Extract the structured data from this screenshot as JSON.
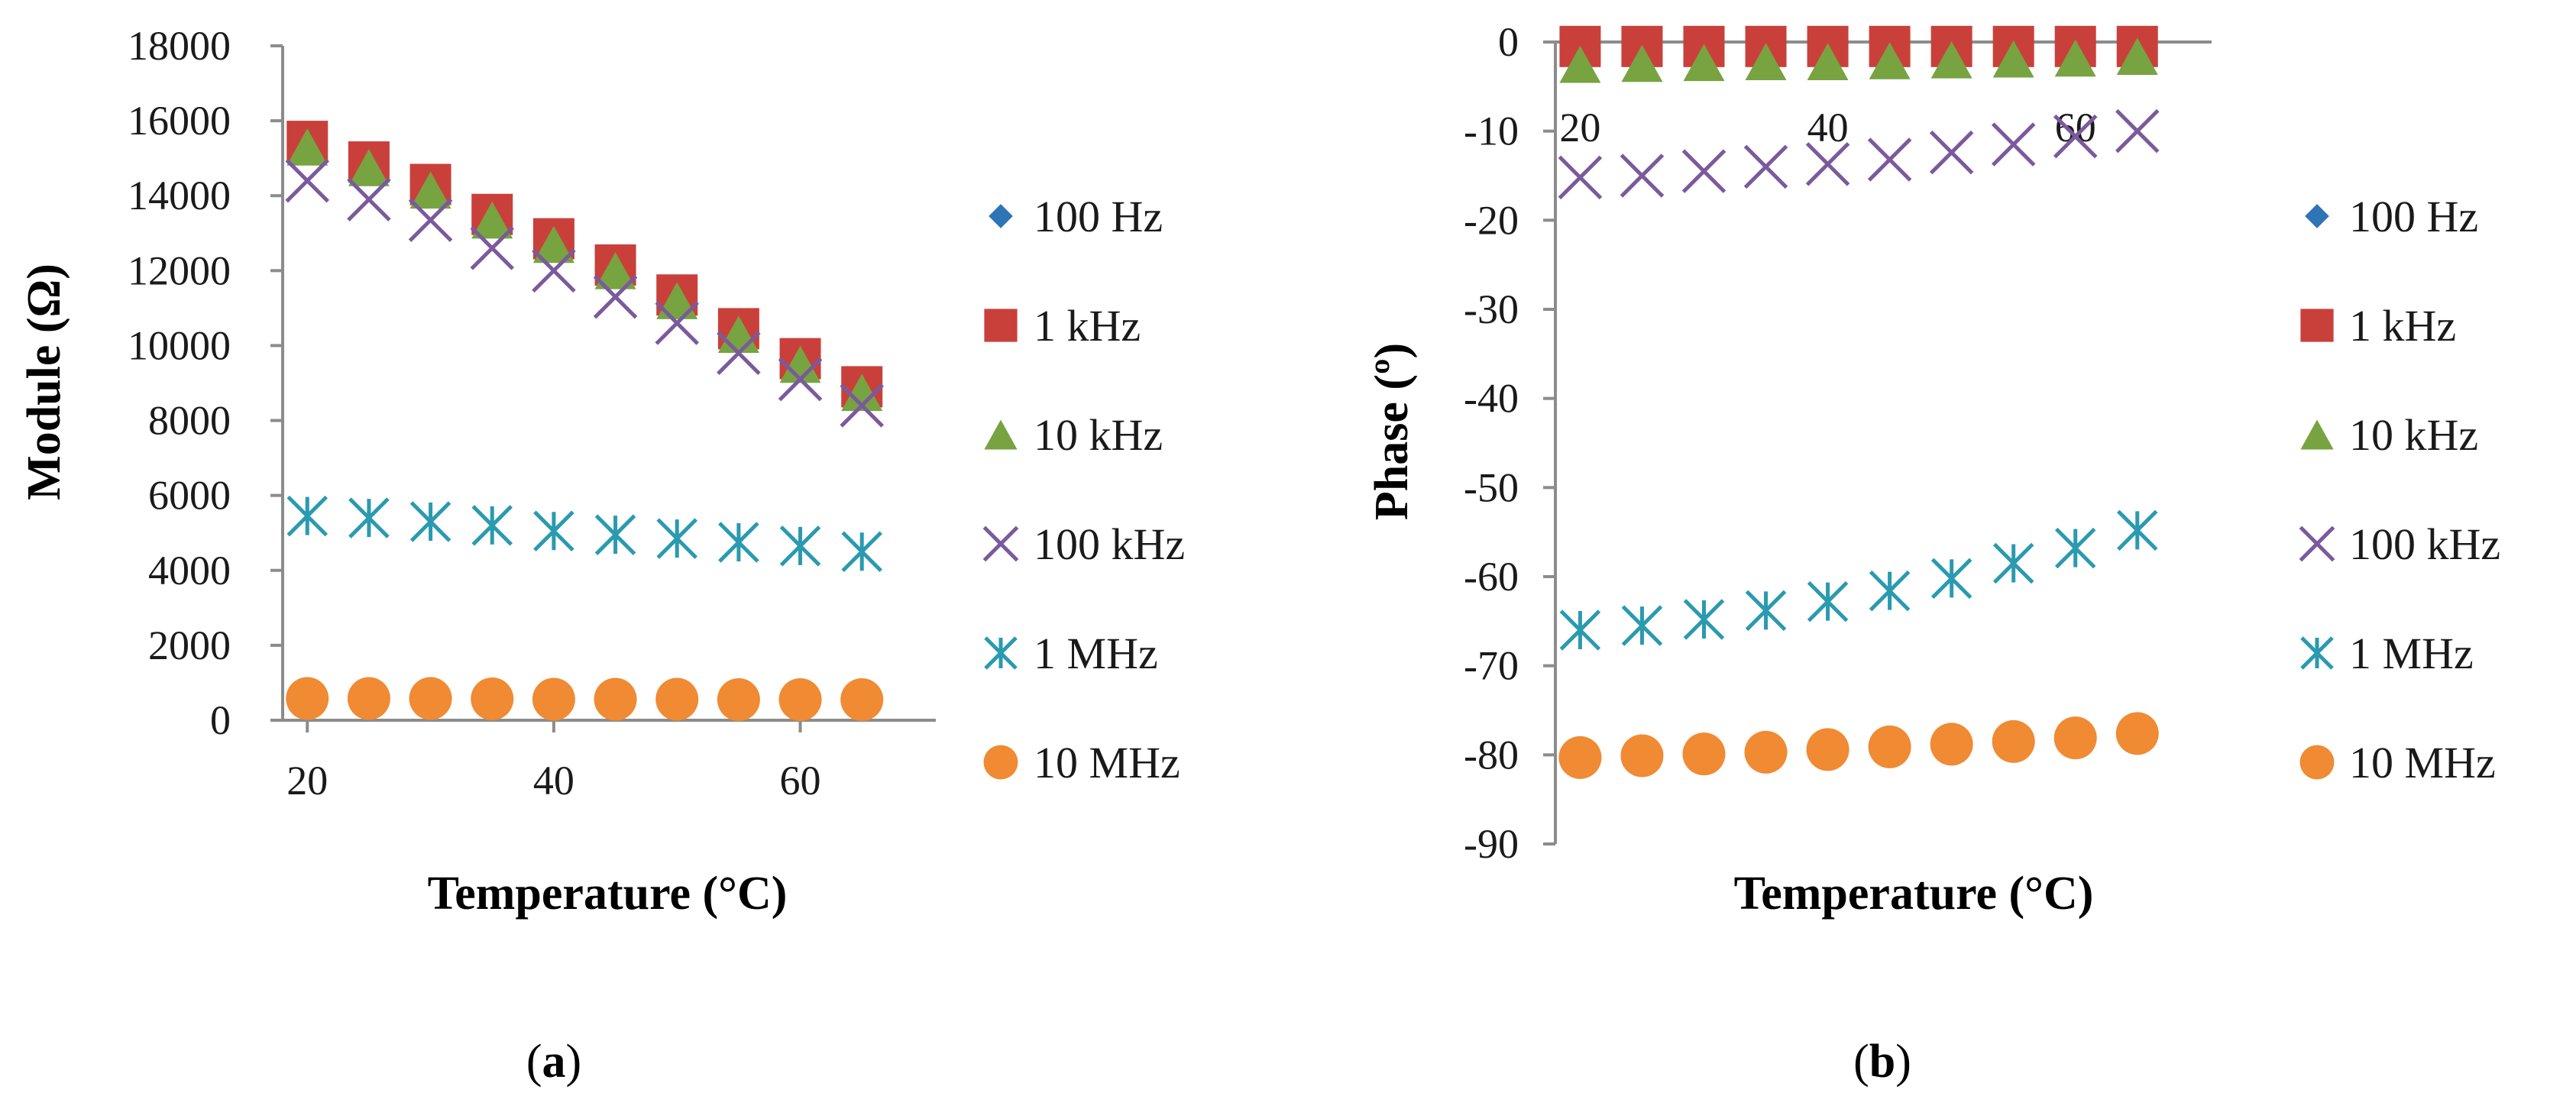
{
  "series_style": [
    {
      "name": "100 Hz",
      "marker": "diamond",
      "color": "#2e75b6"
    },
    {
      "name": "1 kHz",
      "marker": "square",
      "color": "#c9403b"
    },
    {
      "name": "10 kHz",
      "marker": "triangle",
      "color": "#77a341"
    },
    {
      "name": "100 kHz",
      "marker": "x",
      "color": "#7a5a9c"
    },
    {
      "name": "1 MHz",
      "marker": "asterisk",
      "color": "#2a9ab0"
    },
    {
      "name": "10 MHz",
      "marker": "circle",
      "color": "#f08a33"
    }
  ],
  "panels": [
    {
      "label_open": "(",
      "label_letter": "a",
      "label_close": ")"
    },
    {
      "label_open": "(",
      "label_letter": "b",
      "label_close": ")"
    }
  ],
  "chart_data": [
    {
      "type": "scatter",
      "title": "",
      "xlabel": "Temperature (°C)",
      "ylabel": "Module (Ω)",
      "xlim": [
        18,
        71
      ],
      "ylim": [
        0,
        18000
      ],
      "xticks": [
        20,
        40,
        60
      ],
      "yticks": [
        0,
        2000,
        4000,
        6000,
        8000,
        10000,
        12000,
        14000,
        16000,
        18000
      ],
      "x": [
        20,
        25,
        30,
        35,
        40,
        45,
        50,
        55,
        60,
        65
      ],
      "legend_labels": [
        "100 Hz",
        "1 kHz",
        "10 kHz",
        "100 kHz",
        "1 MHz",
        "10 MHz"
      ],
      "series": [
        {
          "name": "100 Hz",
          "values": [
            15500,
            14950,
            14350,
            13550,
            12900,
            12200,
            11400,
            10500,
            9700,
            8950
          ]
        },
        {
          "name": "1 kHz",
          "values": [
            15450,
            14900,
            14300,
            13500,
            12850,
            12150,
            11350,
            10450,
            9650,
            8900
          ]
        },
        {
          "name": "10 kHz",
          "values": [
            15300,
            14750,
            14150,
            13350,
            12700,
            12000,
            11200,
            10300,
            9500,
            8750
          ]
        },
        {
          "name": "100 kHz",
          "values": [
            14400,
            13900,
            13350,
            12600,
            12000,
            11300,
            10600,
            9800,
            9100,
            8400
          ]
        },
        {
          "name": "1 MHz",
          "values": [
            5450,
            5400,
            5300,
            5200,
            5050,
            4950,
            4850,
            4750,
            4650,
            4500
          ]
        },
        {
          "name": "10 MHz",
          "values": [
            580,
            580,
            580,
            570,
            560,
            560,
            560,
            550,
            550,
            550
          ]
        }
      ]
    },
    {
      "type": "scatter",
      "title": "",
      "xlabel": "Temperature (°C)",
      "ylabel": "Phase (º)",
      "xlim": [
        18,
        71
      ],
      "ylim": [
        -90,
        0
      ],
      "xticks": [
        20,
        40,
        60
      ],
      "yticks": [
        0,
        -10,
        -20,
        -30,
        -40,
        -50,
        -60,
        -70,
        -80,
        -90
      ],
      "x": [
        20,
        25,
        30,
        35,
        40,
        45,
        50,
        55,
        60,
        65
      ],
      "legend_labels": [
        "100 Hz",
        "1 kHz",
        "10 kHz",
        "100 kHz",
        "1 MHz",
        "10 MHz"
      ],
      "series": [
        {
          "name": "100 Hz",
          "values": [
            -0.2,
            -0.2,
            -0.2,
            -0.2,
            -0.2,
            -0.2,
            -0.2,
            -0.2,
            -0.2,
            -0.2
          ]
        },
        {
          "name": "1 kHz",
          "values": [
            -0.5,
            -0.5,
            -0.5,
            -0.5,
            -0.5,
            -0.5,
            -0.5,
            -0.5,
            -0.5,
            -0.5
          ]
        },
        {
          "name": "10 kHz",
          "values": [
            -2.5,
            -2.4,
            -2.3,
            -2.2,
            -2.2,
            -2.1,
            -2.0,
            -1.9,
            -1.8,
            -1.6
          ]
        },
        {
          "name": "100 kHz",
          "values": [
            -15.2,
            -15.0,
            -14.5,
            -14.0,
            -13.7,
            -13.2,
            -12.4,
            -11.5,
            -10.6,
            -10.0
          ]
        },
        {
          "name": "1 MHz",
          "values": [
            -66.0,
            -65.5,
            -64.8,
            -63.8,
            -62.8,
            -61.6,
            -60.2,
            -58.5,
            -56.8,
            -54.8
          ]
        },
        {
          "name": "10 MHz",
          "values": [
            -80.3,
            -80.1,
            -79.9,
            -79.7,
            -79.4,
            -79.1,
            -78.8,
            -78.5,
            -78.1,
            -77.6
          ]
        }
      ]
    }
  ]
}
